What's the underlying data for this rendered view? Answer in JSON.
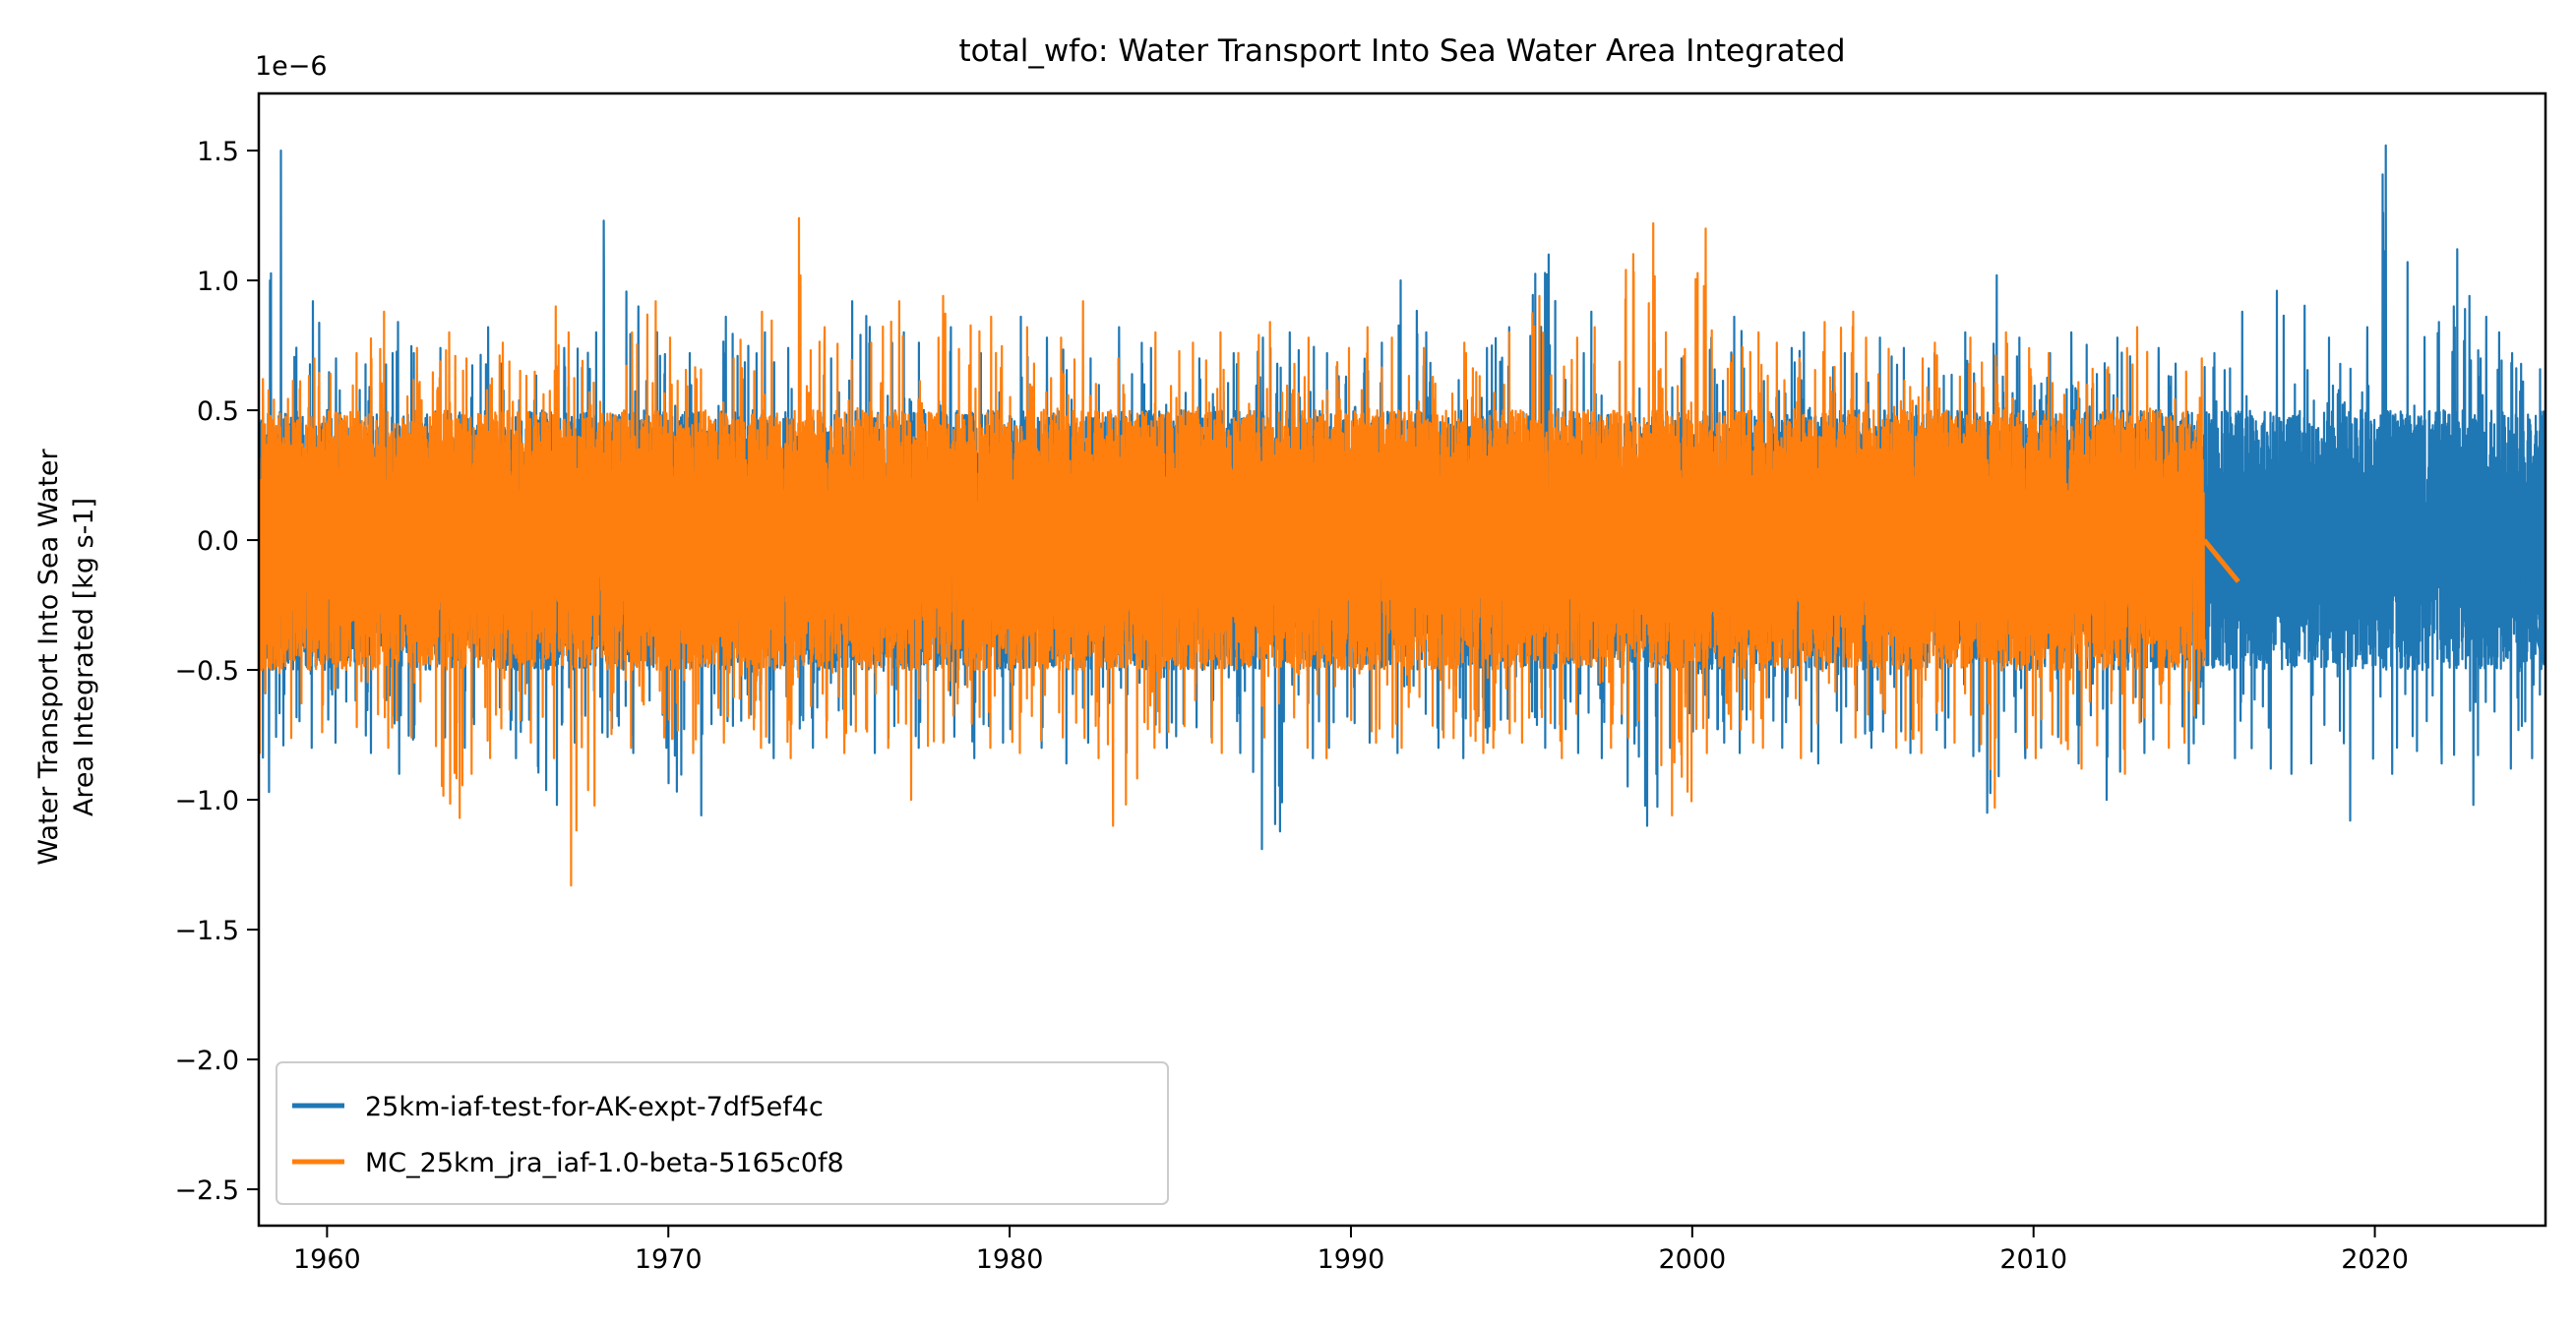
{
  "chart_data": {
    "type": "line",
    "title": "total_wfo: Water Transport Into Sea Water Area Integrated",
    "ylabel": [
      "Water Transport Into Sea Water",
      "Area Integrated [kg s-1]"
    ],
    "xlabel": "",
    "y_offset_label": "1e−6",
    "xlim": [
      1958.0,
      2025.0
    ],
    "ylim": [
      -2.64,
      1.72
    ],
    "x_ticks": [
      1960,
      1970,
      1980,
      1990,
      2000,
      2010,
      2020
    ],
    "x_tick_labels": [
      "1960",
      "1970",
      "1980",
      "1990",
      "2000",
      "2010",
      "2020"
    ],
    "y_ticks": [
      1.5,
      1.0,
      0.5,
      0.0,
      -0.5,
      -1.0,
      -1.5,
      -2.0,
      -2.5
    ],
    "y_tick_labels": [
      "1.5",
      "1.0",
      "0.5",
      "0.0",
      "−0.5",
      "−1.0",
      "−1.5",
      "−2.0",
      "−2.5"
    ],
    "grid": false,
    "legend_position": "lower-left",
    "series": [
      {
        "name": "25km-iaf-test-for-AK-expt-7df5ef4c",
        "color": "#1f77b4",
        "start_year": 1958,
        "yearly_max": [
          1.5,
          0.92,
          0.7,
          0.72,
          0.84,
          0.74,
          0.82,
          0.68,
          0.74,
          0.8,
          1.23,
          0.9,
          0.72,
          0.86,
          0.8,
          0.74,
          0.7,
          0.92,
          0.8,
          0.76,
          0.82,
          0.72,
          0.86,
          0.78,
          0.7,
          0.82,
          0.74,
          0.7,
          0.72,
          0.78,
          0.8,
          0.72,
          0.76,
          1.0,
          0.8,
          0.74,
          0.82,
          1.1,
          0.72,
          0.88,
          0.76,
          0.7,
          0.78,
          0.86,
          0.74,
          0.8,
          0.72,
          0.78,
          0.74,
          0.72,
          1.02,
          0.78,
          0.72,
          0.8,
          0.78,
          0.74,
          0.68,
          0.72,
          0.88,
          0.96,
          0.78,
          0.82,
          1.52,
          0.84,
          1.12,
          0.86,
          0.72
        ],
        "yearly_min": [
          -0.97,
          -0.8,
          -0.78,
          -0.82,
          -0.9,
          -0.76,
          -0.8,
          -0.84,
          -1.02,
          -0.78,
          -0.82,
          -0.8,
          -1.06,
          -0.8,
          -0.78,
          -0.84,
          -0.8,
          -0.76,
          -0.82,
          -0.8,
          -0.84,
          -0.78,
          -0.8,
          -0.86,
          -0.78,
          -0.82,
          -0.8,
          -0.76,
          -0.82,
          -1.19,
          -0.84,
          -0.8,
          -0.78,
          -0.82,
          -0.8,
          -0.84,
          -0.78,
          -0.8,
          -0.82,
          -0.84,
          -1.1,
          -0.8,
          -0.78,
          -0.82,
          -0.8,
          -0.86,
          -0.78,
          -0.8,
          -0.82,
          -0.8,
          -1.05,
          -0.84,
          -0.8,
          -0.86,
          -1.0,
          -0.82,
          -0.86,
          -0.84,
          -0.88,
          -0.9,
          -0.86,
          -1.08,
          -0.9,
          -0.86,
          -1.02,
          -0.88,
          -0.84
        ],
        "tail": {
          "x": [
            2024.0,
            2025.0
          ],
          "y": [
            0.0,
            -0.48
          ]
        }
      },
      {
        "name": "MC_25km_jra_iaf-1.0-beta-5165c0f8",
        "color": "#ff7f0e",
        "start_year": 1958,
        "yearly_max": [
          0.62,
          0.7,
          0.72,
          0.88,
          0.74,
          0.8,
          0.7,
          0.76,
          0.9,
          0.8,
          0.8,
          0.92,
          0.78,
          0.7,
          0.88,
          1.24,
          0.82,
          0.76,
          0.92,
          0.78,
          0.94,
          0.86,
          0.82,
          0.78,
          0.92,
          0.7,
          0.8,
          0.76,
          0.8,
          0.84,
          0.78,
          0.74,
          0.82,
          0.78,
          0.74,
          0.76,
          0.8,
          0.94,
          0.78,
          0.82,
          1.22,
          0.8,
          1.2,
          0.8,
          0.76,
          0.84,
          0.88,
          0.78,
          0.7,
          0.76,
          0.78,
          0.8,
          0.72,
          0.66,
          0.74,
          0.82,
          0.7
        ],
        "yearly_min": [
          -0.82,
          -0.74,
          -0.72,
          -0.8,
          -0.76,
          -1.07,
          -0.9,
          -0.78,
          -0.84,
          -1.33,
          -0.8,
          -0.76,
          -0.82,
          -0.78,
          -0.8,
          -0.84,
          -0.76,
          -0.82,
          -0.8,
          -1.0,
          -0.78,
          -0.8,
          -0.82,
          -0.76,
          -0.84,
          -1.1,
          -0.8,
          -0.78,
          -0.82,
          -0.76,
          -0.8,
          -0.84,
          -0.78,
          -0.8,
          -0.76,
          -0.82,
          -0.8,
          -0.78,
          -0.84,
          -0.8,
          -0.76,
          -1.06,
          -0.82,
          -0.78,
          -0.8,
          -0.84,
          -0.76,
          -0.8,
          -0.82,
          -0.78,
          -1.03,
          -0.8,
          -0.84,
          -0.88,
          -0.9,
          -0.8,
          -0.78
        ],
        "tail": {
          "x": [
            2015.0,
            2016.0
          ],
          "y": [
            0.0,
            -0.16
          ]
        }
      }
    ]
  }
}
